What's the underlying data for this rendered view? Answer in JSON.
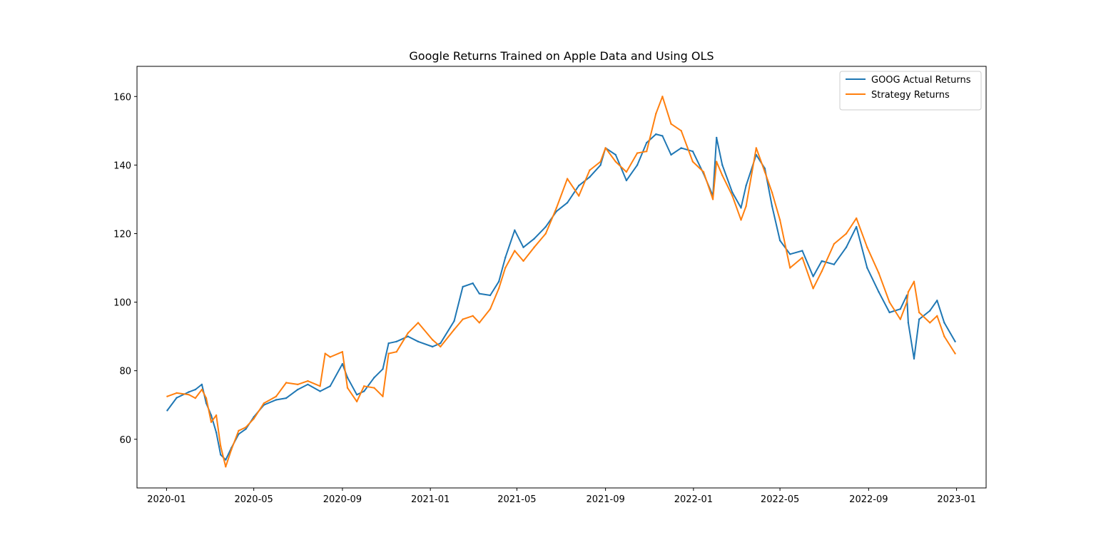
{
  "chart_data": {
    "type": "line",
    "title": "Google Returns Trained on Apple Data and Using OLS",
    "xlabel": "",
    "ylabel": "",
    "x_ticks": [
      "2020-01",
      "2020-05",
      "2020-09",
      "2021-01",
      "2021-05",
      "2021-09",
      "2022-01",
      "2022-05",
      "2022-09",
      "2023-01"
    ],
    "y_ticks": [
      60,
      80,
      100,
      120,
      140,
      160
    ],
    "xlim": [
      "2019-11-21",
      "2023-02-11"
    ],
    "ylim": [
      45.8,
      168.8
    ],
    "grid": false,
    "legend_position": "upper right",
    "series": [
      {
        "name": "GOOG Actual Returns",
        "color": "#1f77b4",
        "points": [
          [
            "2020-01-02",
            68.4
          ],
          [
            "2020-01-15",
            72.1
          ],
          [
            "2020-02-01",
            73.8
          ],
          [
            "2020-02-10",
            74.5
          ],
          [
            "2020-02-19",
            76.0
          ],
          [
            "2020-02-25",
            70.5
          ],
          [
            "2020-03-03",
            67.0
          ],
          [
            "2020-03-10",
            62.0
          ],
          [
            "2020-03-16",
            55.5
          ],
          [
            "2020-03-23",
            54.0
          ],
          [
            "2020-03-31",
            57.5
          ],
          [
            "2020-04-10",
            61.5
          ],
          [
            "2020-04-20",
            63.0
          ],
          [
            "2020-05-01",
            66.5
          ],
          [
            "2020-05-15",
            70.0
          ],
          [
            "2020-06-01",
            71.5
          ],
          [
            "2020-06-15",
            72.0
          ],
          [
            "2020-07-01",
            74.5
          ],
          [
            "2020-07-15",
            76.0
          ],
          [
            "2020-08-01",
            74.0
          ],
          [
            "2020-08-15",
            75.5
          ],
          [
            "2020-09-01",
            82.0
          ],
          [
            "2020-09-08",
            78.0
          ],
          [
            "2020-09-21",
            73.0
          ],
          [
            "2020-10-01",
            74.0
          ],
          [
            "2020-10-15",
            78.0
          ],
          [
            "2020-10-27",
            80.5
          ],
          [
            "2020-11-04",
            88.0
          ],
          [
            "2020-11-15",
            88.5
          ],
          [
            "2020-12-01",
            90.0
          ],
          [
            "2020-12-15",
            88.5
          ],
          [
            "2021-01-04",
            87.0
          ],
          [
            "2021-01-15",
            88.0
          ],
          [
            "2021-02-03",
            94.5
          ],
          [
            "2021-02-15",
            104.5
          ],
          [
            "2021-03-01",
            105.5
          ],
          [
            "2021-03-10",
            102.5
          ],
          [
            "2021-03-25",
            102.0
          ],
          [
            "2021-04-06",
            106.0
          ],
          [
            "2021-04-15",
            113.0
          ],
          [
            "2021-04-28",
            121.0
          ],
          [
            "2021-05-10",
            116.0
          ],
          [
            "2021-05-25",
            118.5
          ],
          [
            "2021-06-10",
            122.0
          ],
          [
            "2021-06-25",
            126.5
          ],
          [
            "2021-07-10",
            129.0
          ],
          [
            "2021-07-26",
            134.0
          ],
          [
            "2021-08-10",
            136.5
          ],
          [
            "2021-08-25",
            140.0
          ],
          [
            "2021-09-01",
            145.0
          ],
          [
            "2021-09-15",
            143.0
          ],
          [
            "2021-09-30",
            135.5
          ],
          [
            "2021-10-15",
            140.0
          ],
          [
            "2021-10-28",
            146.5
          ],
          [
            "2021-11-10",
            149.0
          ],
          [
            "2021-11-19",
            148.5
          ],
          [
            "2021-12-01",
            143.0
          ],
          [
            "2021-12-15",
            145.0
          ],
          [
            "2021-12-31",
            144.0
          ],
          [
            "2022-01-15",
            137.5
          ],
          [
            "2022-01-28",
            131.0
          ],
          [
            "2022-02-02",
            148.0
          ],
          [
            "2022-02-10",
            140.0
          ],
          [
            "2022-02-24",
            132.0
          ],
          [
            "2022-03-08",
            127.5
          ],
          [
            "2022-03-15",
            134.0
          ],
          [
            "2022-03-29",
            143.0
          ],
          [
            "2022-04-10",
            139.0
          ],
          [
            "2022-04-20",
            128.0
          ],
          [
            "2022-05-01",
            118.0
          ],
          [
            "2022-05-15",
            114.0
          ],
          [
            "2022-06-01",
            115.0
          ],
          [
            "2022-06-16",
            107.5
          ],
          [
            "2022-06-28",
            112.0
          ],
          [
            "2022-07-15",
            111.0
          ],
          [
            "2022-08-01",
            116.0
          ],
          [
            "2022-08-15",
            122.0
          ],
          [
            "2022-08-30",
            110.0
          ],
          [
            "2022-09-15",
            103.0
          ],
          [
            "2022-09-30",
            97.0
          ],
          [
            "2022-10-15",
            98.0
          ],
          [
            "2022-10-24",
            102.0
          ],
          [
            "2022-10-26",
            94.0
          ],
          [
            "2022-11-03",
            83.5
          ],
          [
            "2022-11-10",
            95.0
          ],
          [
            "2022-11-25",
            97.5
          ],
          [
            "2022-12-05",
            100.5
          ],
          [
            "2022-12-15",
            94.0
          ],
          [
            "2022-12-30",
            88.5
          ]
        ]
      },
      {
        "name": "Strategy Returns",
        "color": "#ff7f0e",
        "points": [
          [
            "2020-01-02",
            72.5
          ],
          [
            "2020-01-15",
            73.5
          ],
          [
            "2020-02-01",
            73.0
          ],
          [
            "2020-02-10",
            72.0
          ],
          [
            "2020-02-19",
            74.5
          ],
          [
            "2020-02-25",
            72.0
          ],
          [
            "2020-03-03",
            65.0
          ],
          [
            "2020-03-10",
            67.0
          ],
          [
            "2020-03-16",
            58.0
          ],
          [
            "2020-03-23",
            52.0
          ],
          [
            "2020-03-31",
            57.0
          ],
          [
            "2020-04-10",
            62.5
          ],
          [
            "2020-04-20",
            63.5
          ],
          [
            "2020-05-01",
            66.0
          ],
          [
            "2020-05-15",
            70.5
          ],
          [
            "2020-06-01",
            72.5
          ],
          [
            "2020-06-15",
            76.5
          ],
          [
            "2020-07-01",
            76.0
          ],
          [
            "2020-07-15",
            77.0
          ],
          [
            "2020-08-01",
            75.5
          ],
          [
            "2020-08-08",
            85.0
          ],
          [
            "2020-08-15",
            84.0
          ],
          [
            "2020-09-01",
            85.5
          ],
          [
            "2020-09-08",
            75.0
          ],
          [
            "2020-09-21",
            71.0
          ],
          [
            "2020-10-01",
            75.5
          ],
          [
            "2020-10-15",
            75.0
          ],
          [
            "2020-10-27",
            72.5
          ],
          [
            "2020-11-04",
            85.0
          ],
          [
            "2020-11-15",
            85.5
          ],
          [
            "2020-12-01",
            91.0
          ],
          [
            "2020-12-15",
            94.0
          ],
          [
            "2021-01-04",
            89.0
          ],
          [
            "2021-01-15",
            87.0
          ],
          [
            "2021-02-03",
            92.0
          ],
          [
            "2021-02-15",
            95.0
          ],
          [
            "2021-03-01",
            96.0
          ],
          [
            "2021-03-10",
            94.0
          ],
          [
            "2021-03-25",
            98.0
          ],
          [
            "2021-04-06",
            104.0
          ],
          [
            "2021-04-15",
            110.0
          ],
          [
            "2021-04-28",
            115.0
          ],
          [
            "2021-05-10",
            112.0
          ],
          [
            "2021-05-25",
            116.0
          ],
          [
            "2021-06-10",
            120.0
          ],
          [
            "2021-06-25",
            127.5
          ],
          [
            "2021-07-10",
            136.0
          ],
          [
            "2021-07-26",
            131.0
          ],
          [
            "2021-08-10",
            138.5
          ],
          [
            "2021-08-25",
            141.0
          ],
          [
            "2021-09-01",
            145.0
          ],
          [
            "2021-09-15",
            141.0
          ],
          [
            "2021-09-30",
            138.0
          ],
          [
            "2021-10-15",
            143.5
          ],
          [
            "2021-10-28",
            144.0
          ],
          [
            "2021-11-10",
            155.0
          ],
          [
            "2021-11-19",
            160.0
          ],
          [
            "2021-12-01",
            152.0
          ],
          [
            "2021-12-15",
            150.0
          ],
          [
            "2021-12-31",
            141.0
          ],
          [
            "2022-01-15",
            138.0
          ],
          [
            "2022-01-28",
            130.0
          ],
          [
            "2022-02-02",
            141.0
          ],
          [
            "2022-02-10",
            137.0
          ],
          [
            "2022-02-24",
            131.0
          ],
          [
            "2022-03-08",
            124.0
          ],
          [
            "2022-03-15",
            128.0
          ],
          [
            "2022-03-29",
            145.0
          ],
          [
            "2022-04-10",
            138.0
          ],
          [
            "2022-04-20",
            132.0
          ],
          [
            "2022-05-01",
            124.0
          ],
          [
            "2022-05-15",
            110.0
          ],
          [
            "2022-06-01",
            113.0
          ],
          [
            "2022-06-16",
            104.0
          ],
          [
            "2022-06-28",
            109.0
          ],
          [
            "2022-07-15",
            117.0
          ],
          [
            "2022-08-01",
            120.0
          ],
          [
            "2022-08-15",
            124.5
          ],
          [
            "2022-08-30",
            116.0
          ],
          [
            "2022-09-15",
            108.5
          ],
          [
            "2022-09-30",
            100.0
          ],
          [
            "2022-10-15",
            95.0
          ],
          [
            "2022-10-24",
            100.0
          ],
          [
            "2022-10-26",
            103.0
          ],
          [
            "2022-11-03",
            106.0
          ],
          [
            "2022-11-10",
            97.0
          ],
          [
            "2022-11-25",
            94.0
          ],
          [
            "2022-12-05",
            96.0
          ],
          [
            "2022-12-15",
            90.0
          ],
          [
            "2022-12-30",
            85.0
          ]
        ]
      }
    ]
  }
}
